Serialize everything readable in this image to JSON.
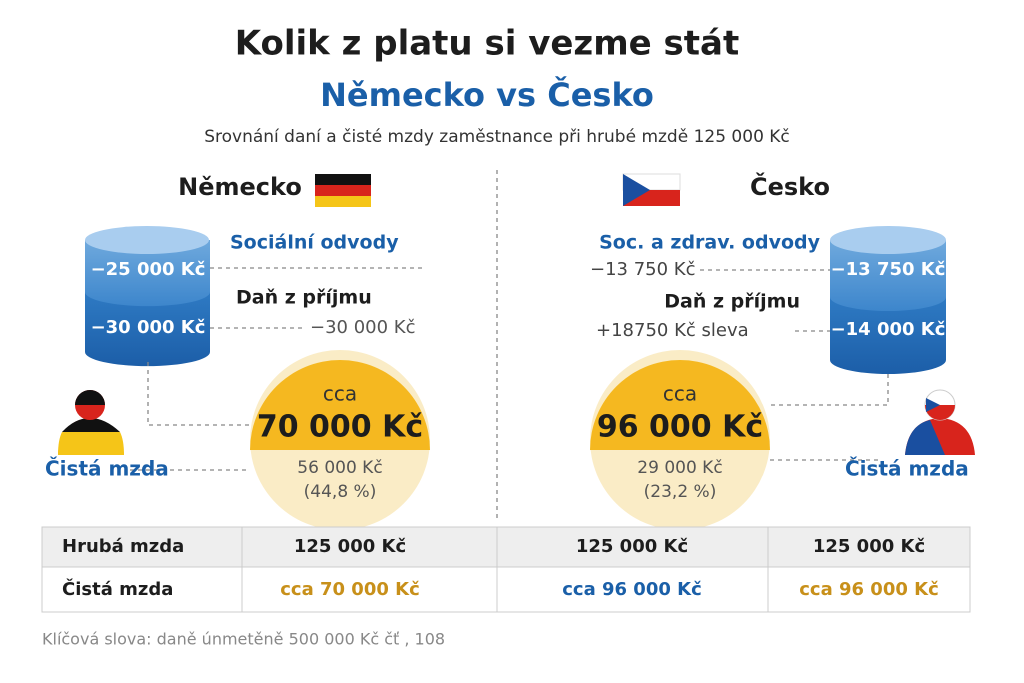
{
  "header": {
    "title": "Kolik z platu si vezme stát",
    "subtitle": "Německo vs Česko",
    "description": "Srovnání daní a čisté mzdy zaměstnance při hrubé mzdě 125 000 Kč"
  },
  "germany": {
    "name": "Německo",
    "social_label": "Sociální odvody",
    "social_cyl": "−25 000 Kč",
    "tax_label": "Daň z příjmu",
    "tax_cyl": "−30 000 Kč",
    "tax_value": "−30 000 Kč",
    "circle_prefix": "cca",
    "net": "70 000 Kč",
    "taxes": "56 000 Kč",
    "share": "(44,8 %)",
    "net_label": "Čistá mzda"
  },
  "czechia": {
    "name": "Česko",
    "social_label": "Soc. a zdrav. odvody",
    "social_value": "−13 750 Kč",
    "social_cyl": "−13 750 Kč",
    "tax_label": "Daň z příjmu",
    "tax_value": "+18750 Kč sleva",
    "tax_cyl": "−14 000 Kč",
    "circle_prefix": "cca",
    "net": "96 000 Kč",
    "taxes": "29 000 Kč",
    "share": "(23,2 %)",
    "net_label": "Čistá mzda"
  },
  "table": {
    "rows": [
      [
        "Hrubá mzda",
        "125 000 Kč",
        "125 000 Kč",
        "125 000 Kč"
      ],
      [
        "Čistá mzda",
        "cca 70 000 Kč",
        "cca 96 000 Kč",
        "cca 96 000 Kč"
      ]
    ]
  },
  "footer": "Klíčová slova: daně únmetěně 500 000 Kč čť , 108"
}
